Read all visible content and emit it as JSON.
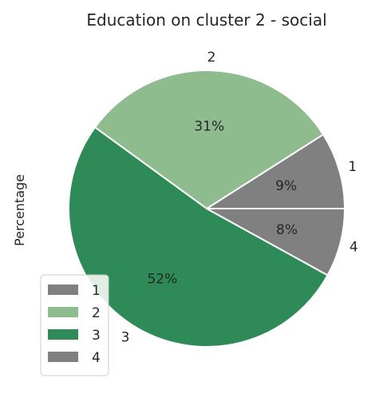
{
  "chart_data": {
    "type": "pie",
    "title": "Education on cluster 2 - social",
    "ylabel": "Percentage",
    "slices": [
      {
        "label": "1",
        "value": 9,
        "pct_label": "9%",
        "color": "#808080"
      },
      {
        "label": "2",
        "value": 31,
        "pct_label": "31%",
        "color": "#8fbc8f"
      },
      {
        "label": "3",
        "value": 52,
        "pct_label": "52%",
        "color": "#2e8b57"
      },
      {
        "label": "4",
        "value": 8,
        "pct_label": "8%",
        "color": "#808080"
      }
    ],
    "start_angle_deg": 0,
    "direction": "counterclockwise",
    "legend": {
      "placement": "lower-left",
      "entries": [
        "1",
        "2",
        "3",
        "4"
      ]
    }
  }
}
